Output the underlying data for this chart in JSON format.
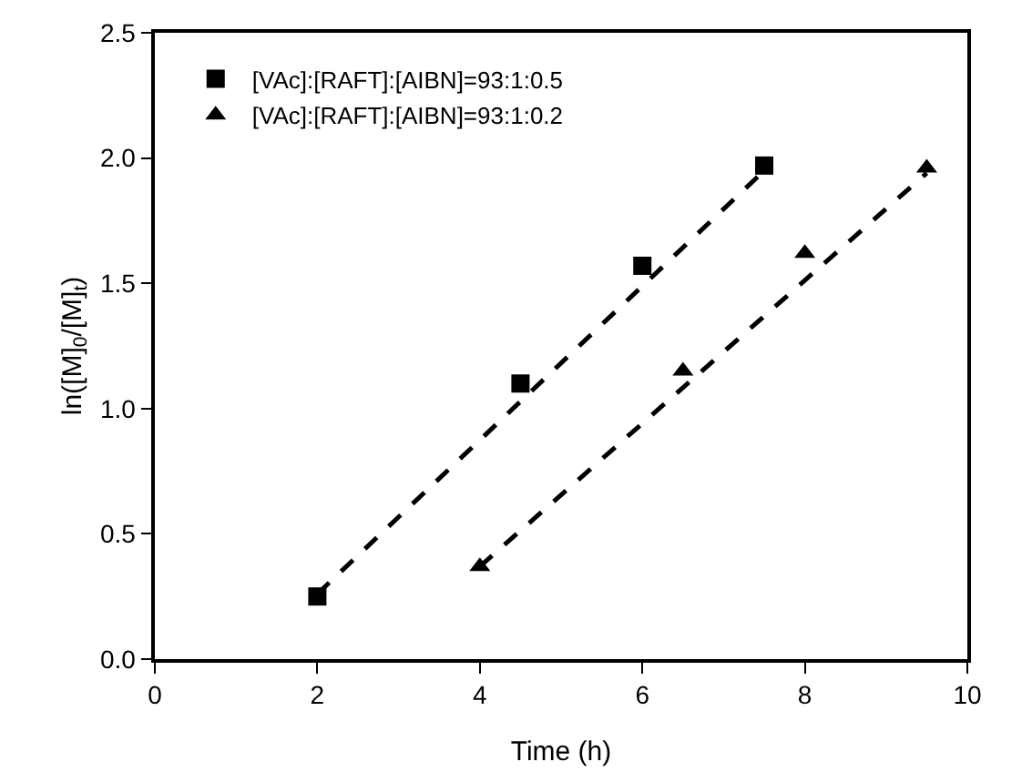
{
  "chart_data": {
    "type": "scatter",
    "xlabel": "Time (h)",
    "ylabel": "ln([M]$_{0}$/[M]$_{t}$)",
    "xlim": [
      0,
      10
    ],
    "xticks": [
      0,
      2,
      4,
      6,
      8,
      10
    ],
    "ylim": [
      0,
      2.5
    ],
    "yticks": [
      {
        "value": 0,
        "label": "0.0"
      },
      {
        "value": 0.5,
        "label": "0.5"
      },
      {
        "value": 1,
        "label": "1.0"
      },
      {
        "value": 1.5,
        "label": "1.5"
      },
      {
        "value": 2,
        "label": "2.0"
      },
      {
        "value": 2.5,
        "label": "2.5"
      }
    ],
    "grid": false,
    "legend": "top left",
    "series": [
      {
        "name": "[VAc]:[RAFT]:[AIBN]=93:1:0.5",
        "color": "#000000",
        "marker": "square",
        "x": [
          2,
          4.5,
          6,
          7.5
        ],
        "values": [
          0.25,
          1.1,
          1.57,
          1.97
        ]
      },
      {
        "name": "[VAc]:[RAFT]:[AIBN]=93:1:0.2",
        "color": "#000000",
        "marker": "triangle",
        "x": [
          4,
          6.5,
          8,
          9.5
        ],
        "values": [
          0.37,
          1.15,
          1.62,
          1.96
        ]
      },
      {
        "type": "line",
        "color": "#000000",
        "line_style": "dashed",
        "marker": "none",
        "x": [
          2,
          7.5
        ],
        "values": [
          0.26,
          1.95
        ]
      },
      {
        "type": "line",
        "color": "#000000",
        "line_style": "dashed",
        "marker": "none",
        "x": [
          4,
          9.5
        ],
        "values": [
          0.37,
          1.94
        ]
      }
    ]
  }
}
